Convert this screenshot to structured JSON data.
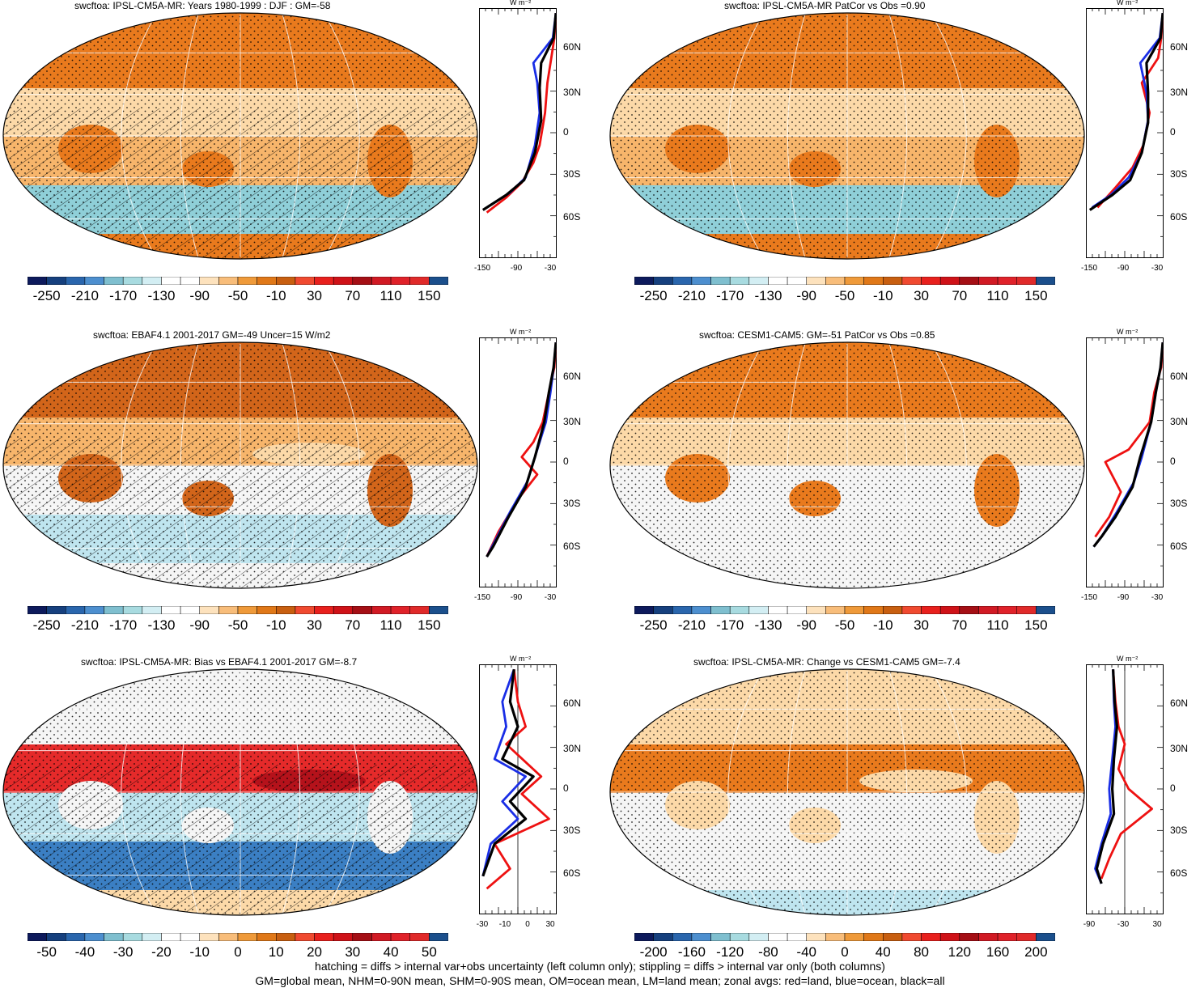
{
  "colors": {
    "ocean_white": "#f5f5f5",
    "light_peach": "#fcd9a8",
    "peach": "#f7b56b",
    "orange": "#e97a1d",
    "dark_orange": "#d2651a",
    "light_blue": "#bfe5ef",
    "teal": "#8fcfd8",
    "blue": "#3b7fc3",
    "dark_blue": "#1d4f9e",
    "red": "#e52a2a",
    "dark_red": "#b5121b",
    "zonal_land": "#ee1111",
    "zonal_ocean": "#1a2ee6",
    "zonal_all": "#000000"
  },
  "colorbar_swatches": [
    "#0d1a5c",
    "#16407e",
    "#2a66ad",
    "#4d8fcf",
    "#7fbfcf",
    "#a8dbe0",
    "#d3eef3",
    "#ffffff",
    "#ffffff",
    "#fde2bd",
    "#f8bd7a",
    "#ef9a3a",
    "#e07818",
    "#c85f10",
    "#f04a30",
    "#e8201d",
    "#cf1218",
    "#a50f15",
    "#d11a24",
    "#e0222a",
    "#e02a2a",
    "#1b4f8c"
  ],
  "panels": [
    {
      "title": "swcftoa: IPSL-CM5A-MR: Years 1980-1999 : DJF : GM=-58",
      "cbar_labels": [
        "-250",
        "-210",
        "-170",
        "-130",
        "-90",
        "-50",
        "-10",
        "30",
        "70",
        "110",
        "150"
      ],
      "zonal_xticks": [
        "-150",
        "-90",
        "-30"
      ],
      "lat_labels": [
        "60N",
        "30N",
        "0",
        "30S",
        "60S"
      ],
      "unit": "W m⁻²"
    },
    {
      "title": "swcftoa: IPSL-CM5A-MR PatCor vs Obs =0.90",
      "cbar_labels": [
        "-250",
        "-210",
        "-170",
        "-130",
        "-90",
        "-50",
        "-10",
        "30",
        "70",
        "110",
        "150"
      ],
      "zonal_xticks": [
        "-150",
        "-90",
        "-30"
      ],
      "lat_labels": [
        "60N",
        "30N",
        "0",
        "30S",
        "60S"
      ],
      "unit": "W m⁻²"
    },
    {
      "title": "swcftoa: EBAF4.1 2001-2017 GM=-49 Uncer=15 W/m2",
      "cbar_labels": [
        "-250",
        "-210",
        "-170",
        "-130",
        "-90",
        "-50",
        "-10",
        "30",
        "70",
        "110",
        "150"
      ],
      "zonal_xticks": [
        "-150",
        "-90",
        "-30"
      ],
      "lat_labels": [
        "60N",
        "30N",
        "0",
        "30S",
        "60S"
      ],
      "unit": "W m⁻²"
    },
    {
      "title": "swcftoa: CESM1-CAM5: GM=-51 PatCor vs Obs =0.85",
      "cbar_labels": [
        "-250",
        "-210",
        "-170",
        "-130",
        "-90",
        "-50",
        "-10",
        "30",
        "70",
        "110",
        "150"
      ],
      "zonal_xticks": [
        "-150",
        "-90",
        "-30"
      ],
      "lat_labels": [
        "60N",
        "30N",
        "0",
        "30S",
        "60S"
      ],
      "unit": "W m⁻²"
    },
    {
      "title": "swcftoa: IPSL-CM5A-MR: Bias vs EBAF4.1 2001-2017 GM=-8.7",
      "cbar_labels": [
        "-50",
        "-40",
        "-30",
        "-20",
        "-10",
        "0",
        "10",
        "20",
        "30",
        "40",
        "50"
      ],
      "zonal_xticks": [
        "-30",
        "-10",
        "0",
        "30"
      ],
      "lat_labels": [
        "60N",
        "30N",
        "0",
        "30S",
        "60S"
      ],
      "unit": "W m⁻²"
    },
    {
      "title": "swcftoa: IPSL-CM5A-MR: Change vs CESM1-CAM5 GM=-7.4",
      "cbar_labels": [
        "-200",
        "-160",
        "-120",
        "-80",
        "-40",
        "0",
        "40",
        "80",
        "120",
        "160",
        "200"
      ],
      "zonal_xticks": [
        "-90",
        "-30",
        "30"
      ],
      "lat_labels": [
        "60N",
        "30N",
        "0",
        "30S",
        "60S"
      ],
      "unit": "W m⁻²"
    }
  ],
  "footer": {
    "line1": "hatching = diffs > internal var+obs uncertainty (left column only); stippling = diffs > internal var only (both columns)",
    "line2": "GM=global mean, NHM=0-90N mean, SHM=0-90S mean, OM=ocean mean, LM=land mean; zonal avgs: red=land, blue=ocean, black=all"
  }
}
